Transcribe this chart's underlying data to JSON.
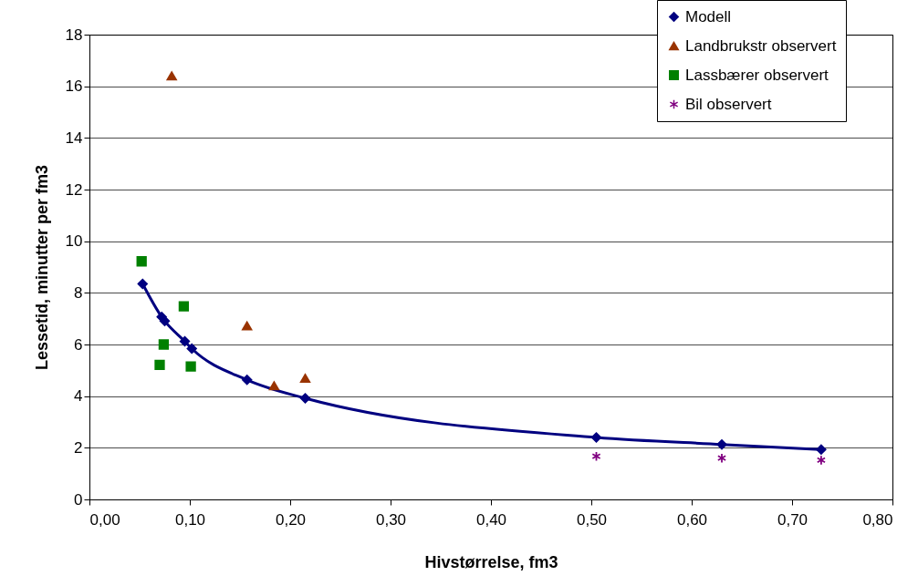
{
  "chart_data": {
    "type": "scatter",
    "xlabel": "Hivstørrelse, fm3",
    "ylabel": "Lessetid, minutter per fm3",
    "xlim": [
      0,
      0.8
    ],
    "xticks": [
      {
        "value": 0,
        "label": "0,00"
      },
      {
        "value": 0.1,
        "label": "0,10"
      },
      {
        "value": 0.2,
        "label": "0,20"
      },
      {
        "value": 0.3,
        "label": "0,30"
      },
      {
        "value": 0.4,
        "label": "0,40"
      },
      {
        "value": 0.5,
        "label": "0,50"
      },
      {
        "value": 0.6,
        "label": "0,60"
      },
      {
        "value": 0.7,
        "label": "0,70"
      },
      {
        "value": 0.8,
        "label": "0,80"
      }
    ],
    "ylim": [
      0,
      18
    ],
    "yticks": [
      0,
      2,
      4,
      6,
      8,
      10,
      12,
      14,
      16,
      18
    ],
    "grid": "y",
    "legend": "top right",
    "series": [
      {
        "name": "Modell",
        "type": "line",
        "marker": "diamond",
        "color": "#000080",
        "x": [
          0.053,
          0.072,
          0.075,
          0.095,
          0.102,
          0.157,
          0.215,
          0.505,
          0.63,
          0.729
        ],
        "values": [
          8.35,
          7.07,
          6.91,
          6.12,
          5.84,
          4.63,
          3.92,
          2.4,
          2.13,
          1.93
        ]
      },
      {
        "name": "Landbrukstr observert",
        "marker": "triangle",
        "color": "#993300",
        "x": [
          0.082,
          0.157,
          0.184,
          0.215
        ],
        "values": [
          16.4,
          6.72,
          4.4,
          4.69
        ]
      },
      {
        "name": "Lassbærer observert",
        "marker": "square",
        "color": "#008000",
        "x": [
          0.052,
          0.094,
          0.074,
          0.07,
          0.101
        ],
        "values": [
          9.22,
          7.48,
          6.0,
          5.21,
          5.15
        ]
      },
      {
        "name": "Bil observert",
        "marker": "cross",
        "color": "#800080",
        "x": [
          0.505,
          0.63,
          0.729
        ],
        "values": [
          1.67,
          1.6,
          1.52
        ]
      }
    ]
  }
}
